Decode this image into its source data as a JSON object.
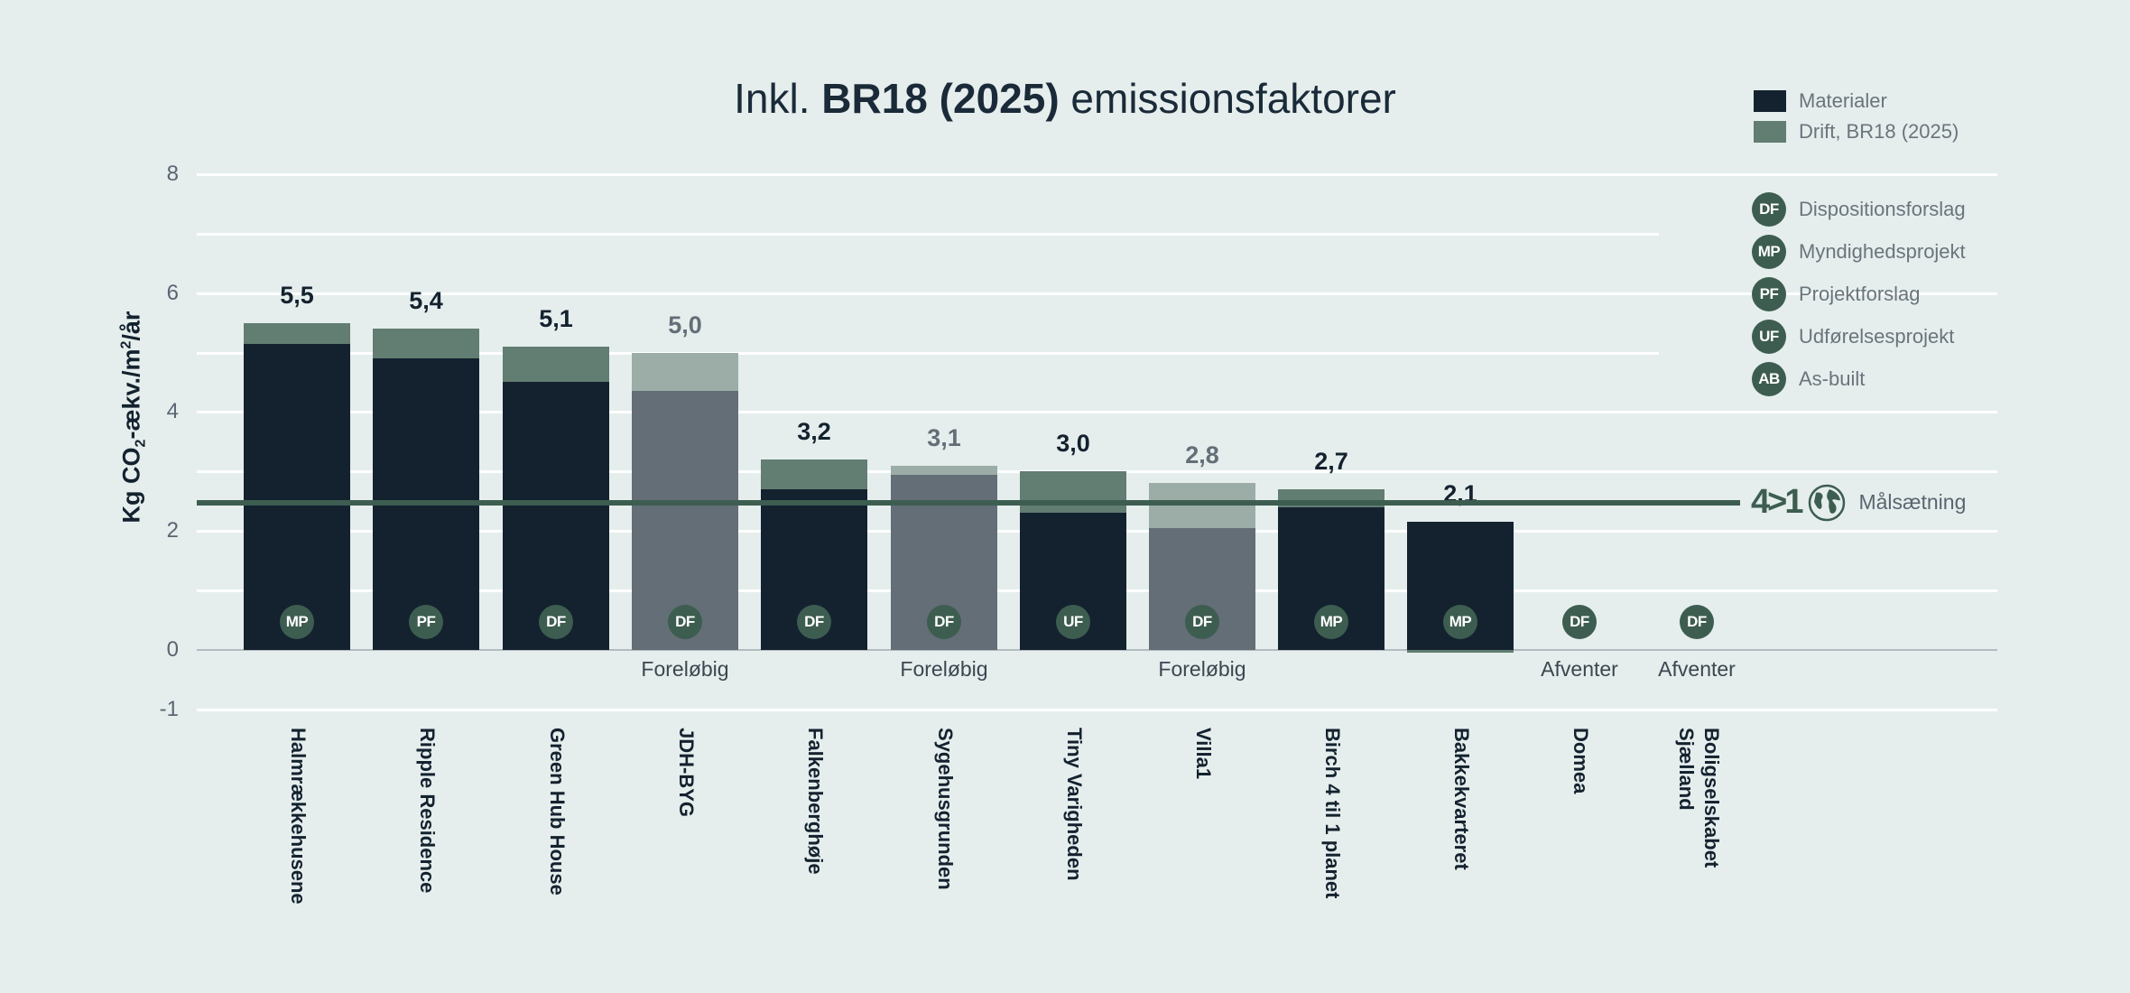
{
  "title": {
    "prefix": "Inkl.",
    "bold": "BR18 (2025)",
    "suffix": "emissionsfaktorer"
  },
  "yaxis": {
    "label_main": "Kg CO",
    "label_sub": "2",
    "label_mid": "-ækv./m",
    "label_sup": "2",
    "label_end": "/år",
    "ticks": [
      "8",
      "6",
      "4",
      "2",
      "0",
      "-1"
    ]
  },
  "legend": {
    "series": [
      {
        "label": "Materialer",
        "color": "#14222f"
      },
      {
        "label": "Drift, BR18 (2025)",
        "color": "#627d72"
      }
    ],
    "phases": [
      {
        "code": "DF",
        "label": "Dispositionsforslag"
      },
      {
        "code": "MP",
        "label": "Myndighedsprojekt"
      },
      {
        "code": "PF",
        "label": "Projektforslag"
      },
      {
        "code": "UF",
        "label": "Udførelsesprojekt"
      },
      {
        "code": "AB",
        "label": "As-built"
      }
    ]
  },
  "target": {
    "logo_text": "4>1",
    "label": "Målsætning",
    "value": 2.5
  },
  "colors": {
    "materials": "#14222f",
    "drift": "#627d72",
    "materials_prelim": "#646e77",
    "drift_prelim": "#9bada6",
    "badge": "#3d5d50",
    "background": "#e5eeed"
  },
  "bars": [
    {
      "name": "Halmrækkehusene",
      "total_label": "5,5",
      "phase": "MP",
      "note": "",
      "preliminary": false
    },
    {
      "name": "Ripple Residence",
      "total_label": "5,4",
      "phase": "PF",
      "note": "",
      "preliminary": false
    },
    {
      "name": "Green Hub House",
      "total_label": "5,1",
      "phase": "DF",
      "note": "",
      "preliminary": false
    },
    {
      "name": "JDH-BYG",
      "total_label": "5,0",
      "phase": "DF",
      "note": "Foreløbig",
      "preliminary": true
    },
    {
      "name": "Falkenberghøje",
      "total_label": "3,2",
      "phase": "DF",
      "note": "",
      "preliminary": false
    },
    {
      "name": "Sygehusgrunden",
      "total_label": "3,1",
      "phase": "DF",
      "note": "Foreløbig",
      "preliminary": true
    },
    {
      "name": "Tiny Varigheden",
      "total_label": "3,0",
      "phase": "UF",
      "note": "",
      "preliminary": false
    },
    {
      "name": "Villa1",
      "total_label": "2,8",
      "phase": "DF",
      "note": "Foreløbig",
      "preliminary": true
    },
    {
      "name": "Birch 4 til 1 planet",
      "total_label": "2,7",
      "phase": "MP",
      "note": "",
      "preliminary": false
    },
    {
      "name": "Bakkekvarteret",
      "total_label": "2,1",
      "phase": "MP",
      "note": "",
      "preliminary": false
    },
    {
      "name": "Domea",
      "total_label": "",
      "phase": "DF",
      "note": "Afventer",
      "preliminary": false
    },
    {
      "name": "Boligselskabet\nSjælland",
      "total_label": "",
      "phase": "DF",
      "note": "Afventer",
      "preliminary": false
    }
  ],
  "chart_data": {
    "type": "bar",
    "stacked": true,
    "title": "Inkl. BR18 (2025) emissionsfaktorer",
    "xlabel": "",
    "ylabel": "Kg CO2-ækv./m2/år",
    "ylim": [
      -1,
      8
    ],
    "yticks": [
      8,
      6,
      4,
      2,
      0,
      -1
    ],
    "grid": true,
    "legend_position": "right",
    "categories": [
      "Halmrækkehusene",
      "Ripple Residence",
      "Green Hub House",
      "JDH-BYG",
      "Falkenberghøje",
      "Sygehusgrunden",
      "Tiny Varigheden",
      "Villa1",
      "Birch 4 til 1 planet",
      "Bakkekvarteret",
      "Domea",
      "Boligselskabet Sjælland"
    ],
    "series": [
      {
        "name": "Materialer",
        "values": [
          5.15,
          4.9,
          4.5,
          4.35,
          2.7,
          2.95,
          2.3,
          2.05,
          2.4,
          2.15,
          null,
          null
        ]
      },
      {
        "name": "Drift, BR18 (2025)",
        "values": [
          0.35,
          0.5,
          0.6,
          0.65,
          0.5,
          0.15,
          0.7,
          0.75,
          0.3,
          -0.05,
          null,
          null
        ]
      }
    ],
    "totals": [
      5.5,
      5.4,
      5.1,
      5.0,
      3.2,
      3.1,
      3.0,
      2.8,
      2.7,
      2.1,
      null,
      null
    ],
    "phases": [
      "MP",
      "PF",
      "DF",
      "DF",
      "DF",
      "DF",
      "UF",
      "DF",
      "MP",
      "MP",
      "DF",
      "DF"
    ],
    "annotations": [
      "",
      "",
      "",
      "Foreløbig",
      "",
      "Foreløbig",
      "",
      "Foreløbig",
      "",
      "",
      "Afventer",
      "Afventer"
    ],
    "reference_line": {
      "label": "4>1 Målsætning",
      "value": 2.5
    }
  }
}
